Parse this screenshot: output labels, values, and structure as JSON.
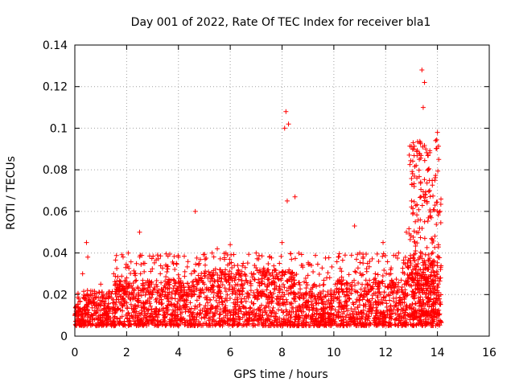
{
  "chart_data": {
    "type": "scatter",
    "title": "Day 001 of 2022, Rate Of TEC Index for receiver bla1",
    "xlabel": "GPS time / hours",
    "ylabel": "ROTI / TECUs",
    "xlim": [
      0,
      16
    ],
    "ylim": [
      0,
      0.14
    ],
    "xticks": [
      "0",
      "2",
      "4",
      "6",
      "8",
      "10",
      "12",
      "14",
      "16"
    ],
    "yticks": [
      "0",
      "0.02",
      "0.04",
      "0.06",
      "0.08",
      "0.1",
      "0.12",
      "0.14"
    ],
    "grid": true,
    "marker": "+",
    "color": "#ff0000",
    "series": [
      {
        "x": [
          0.05,
          0.15,
          0.3,
          0.45,
          0.5,
          0.6,
          0.8,
          1.0,
          1.2,
          1.5,
          1.8,
          2.0,
          2.2,
          2.5,
          2.7,
          3.0,
          3.3,
          3.6,
          4.0,
          4.2,
          4.5,
          4.65,
          4.8,
          5.0,
          5.3,
          5.5,
          5.8,
          6.0,
          6.2,
          6.5,
          6.8,
          7.0,
          7.3,
          7.6,
          7.9,
          8.0,
          8.1,
          8.15,
          8.2,
          8.25,
          8.5,
          8.8,
          9.0,
          9.3,
          9.6,
          10.0,
          10.3,
          10.6,
          10.8,
          11.0,
          11.3,
          11.6,
          11.9,
          12.2,
          12.5,
          12.8,
          13.0,
          13.1,
          13.3,
          13.4,
          13.45,
          13.5,
          13.55,
          13.7,
          13.9,
          14.0,
          14.05,
          14.1
        ],
        "y": [
          0.012,
          0.018,
          0.03,
          0.045,
          0.038,
          0.02,
          0.015,
          0.025,
          0.018,
          0.03,
          0.022,
          0.028,
          0.02,
          0.05,
          0.035,
          0.02,
          0.03,
          0.025,
          0.038,
          0.02,
          0.03,
          0.06,
          0.035,
          0.025,
          0.04,
          0.042,
          0.03,
          0.044,
          0.028,
          0.035,
          0.022,
          0.04,
          0.03,
          0.025,
          0.035,
          0.045,
          0.1,
          0.108,
          0.065,
          0.102,
          0.067,
          0.02,
          0.015,
          0.018,
          0.012,
          0.02,
          0.025,
          0.018,
          0.053,
          0.04,
          0.035,
          0.03,
          0.045,
          0.03,
          0.04,
          0.05,
          0.065,
          0.072,
          0.085,
          0.128,
          0.11,
          0.122,
          0.09,
          0.07,
          0.075,
          0.098,
          0.085,
          0.06
        ]
      }
    ]
  }
}
